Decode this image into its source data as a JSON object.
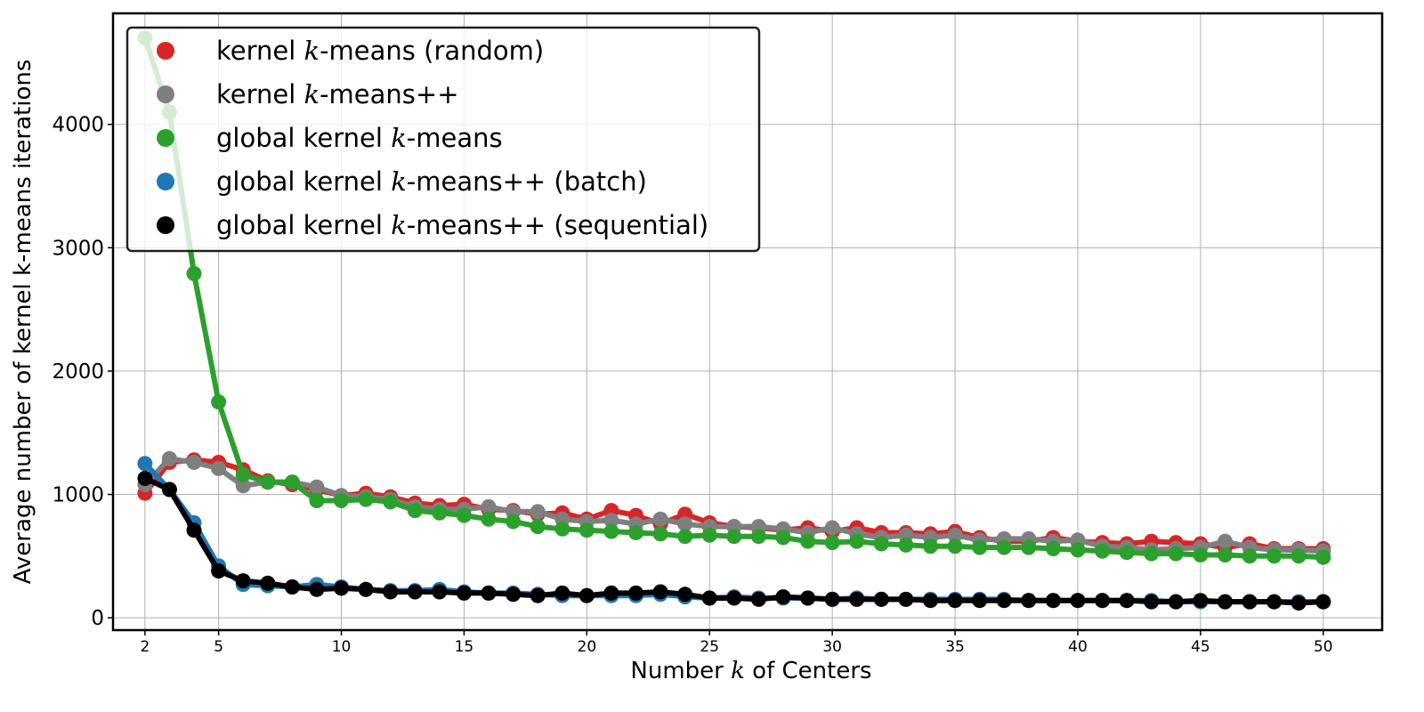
{
  "chart_data": {
    "type": "line",
    "xlabel": "Number k of Centers",
    "ylabel": "Average number of kernel k-means iterations",
    "xlim": [
      0.7,
      52.4
    ],
    "ylim": [
      -100,
      4900
    ],
    "xticks": [
      2,
      5,
      10,
      15,
      20,
      25,
      30,
      35,
      40,
      45,
      50
    ],
    "yticks": [
      0,
      1000,
      2000,
      3000,
      4000
    ],
    "grid": true,
    "legend_position": "top-left",
    "x": [
      2,
      3,
      4,
      5,
      6,
      7,
      8,
      9,
      10,
      11,
      12,
      13,
      14,
      15,
      16,
      17,
      18,
      19,
      20,
      21,
      22,
      23,
      24,
      25,
      26,
      27,
      28,
      29,
      30,
      31,
      32,
      33,
      34,
      35,
      36,
      37,
      38,
      39,
      40,
      41,
      42,
      43,
      44,
      45,
      46,
      47,
      48,
      49,
      50
    ],
    "series": [
      {
        "name": "kernel k-means (random)",
        "color": "#d62728",
        "values": [
          1010,
          1260,
          1280,
          1260,
          1200,
          1110,
          1080,
          1040,
          990,
          1010,
          980,
          930,
          910,
          920,
          880,
          870,
          840,
          850,
          800,
          870,
          830,
          760,
          840,
          770,
          740,
          730,
          710,
          730,
          700,
          730,
          690,
          690,
          680,
          700,
          650,
          620,
          620,
          650,
          620,
          610,
          600,
          620,
          610,
          600,
          570,
          600,
          560,
          560,
          560
        ]
      },
      {
        "name": "kernel k-means++",
        "color": "#7f7f7f",
        "values": [
          1080,
          1290,
          1260,
          1210,
          1070,
          1100,
          1100,
          1060,
          990,
          980,
          960,
          900,
          880,
          880,
          900,
          860,
          860,
          800,
          780,
          790,
          760,
          800,
          760,
          740,
          740,
          740,
          720,
          690,
          730,
          680,
          650,
          670,
          650,
          670,
          630,
          640,
          640,
          620,
          630,
          580,
          570,
          550,
          560,
          570,
          620,
          570,
          550,
          550,
          540
        ]
      },
      {
        "name": "global kernel k-means",
        "color": "#2ca02c",
        "values": [
          4700,
          4100,
          2790,
          1750,
          1160,
          1100,
          1100,
          950,
          950,
          960,
          940,
          870,
          850,
          830,
          800,
          780,
          740,
          720,
          710,
          700,
          690,
          680,
          660,
          670,
          660,
          660,
          650,
          620,
          610,
          620,
          600,
          590,
          580,
          580,
          570,
          570,
          570,
          560,
          550,
          540,
          530,
          520,
          520,
          510,
          510,
          500,
          500,
          500,
          490
        ]
      },
      {
        "name": "global kernel k-means++ (batch)",
        "color": "#1f77b4",
        "values": [
          1250,
          1040,
          770,
          420,
          270,
          260,
          250,
          270,
          250,
          230,
          220,
          220,
          230,
          210,
          200,
          200,
          190,
          180,
          180,
          180,
          180,
          190,
          170,
          160,
          170,
          160,
          160,
          160,
          150,
          160,
          150,
          150,
          150,
          150,
          150,
          150,
          140,
          140,
          140,
          140,
          140,
          140,
          130,
          130,
          130,
          130,
          130,
          130,
          130
        ]
      },
      {
        "name": "global kernel k-means++ (sequential)",
        "color": "#000000",
        "values": [
          1130,
          1040,
          710,
          380,
          300,
          280,
          250,
          230,
          240,
          230,
          210,
          210,
          210,
          200,
          200,
          190,
          180,
          200,
          180,
          200,
          200,
          210,
          190,
          160,
          160,
          150,
          170,
          160,
          150,
          150,
          150,
          150,
          140,
          140,
          140,
          140,
          140,
          140,
          140,
          140,
          140,
          130,
          130,
          140,
          130,
          130,
          130,
          120,
          130
        ]
      }
    ],
    "legend": [
      {
        "pre": "kernel ",
        "var": "k",
        "post": "-means (random)"
      },
      {
        "pre": "kernel ",
        "var": "k",
        "post": "-means++"
      },
      {
        "pre": "global kernel ",
        "var": "k",
        "post": "-means"
      },
      {
        "pre": "global kernel ",
        "var": "k",
        "post": "-means++ (batch)"
      },
      {
        "pre": "global kernel ",
        "var": "k",
        "post": "-means++ (sequential)"
      }
    ]
  }
}
